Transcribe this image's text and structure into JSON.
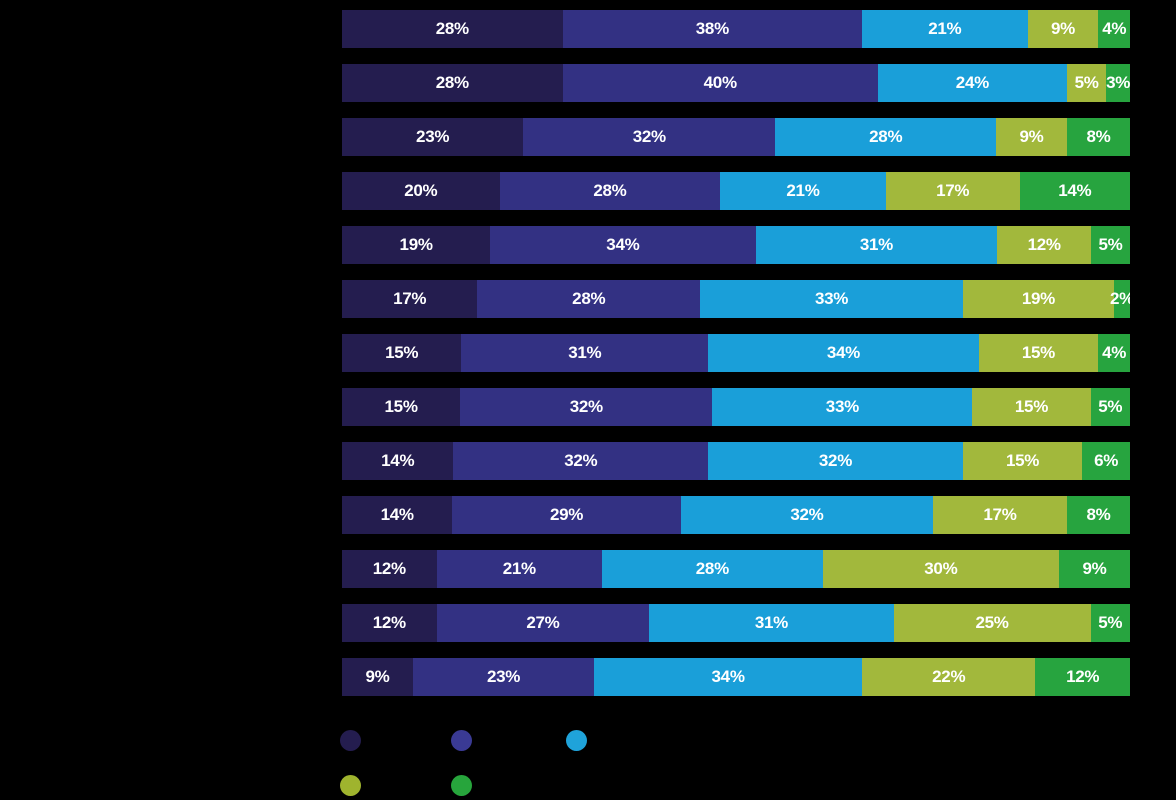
{
  "background_color": "#000000",
  "bar_label_color": "#ffffff",
  "chart_data": {
    "type": "bar",
    "orientation": "horizontal",
    "stacked": true,
    "num_rows": 13,
    "value_unit": "percent",
    "label_format": "{value}%",
    "row_sums_note": "each row rendered normalized to full bar width",
    "series": [
      {
        "name": "segment-1-dark-navy",
        "color": "#241d4f",
        "values": [
          28,
          28,
          23,
          20,
          19,
          17,
          15,
          15,
          14,
          14,
          12,
          12,
          9
        ]
      },
      {
        "name": "segment-2-indigo",
        "color": "#333183",
        "values": [
          38,
          40,
          32,
          28,
          34,
          28,
          31,
          32,
          32,
          29,
          21,
          27,
          23
        ]
      },
      {
        "name": "segment-3-cyan",
        "color": "#1a9fd9",
        "values": [
          21,
          24,
          28,
          21,
          31,
          33,
          34,
          33,
          32,
          32,
          28,
          31,
          34
        ]
      },
      {
        "name": "segment-4-olive-green",
        "color": "#a2b83c",
        "values": [
          9,
          5,
          9,
          17,
          12,
          19,
          15,
          15,
          15,
          17,
          30,
          25,
          22
        ]
      },
      {
        "name": "segment-5-green",
        "color": "#27a43f",
        "values": [
          4,
          3,
          8,
          14,
          5,
          2,
          4,
          5,
          6,
          8,
          9,
          5,
          12
        ]
      }
    ],
    "legend": {
      "items": [
        {
          "name": "legend-dot-1",
          "color": "#241d4f"
        },
        {
          "name": "legend-dot-2",
          "color": "#3a3a94"
        },
        {
          "name": "legend-dot-3",
          "color": "#1fa3da"
        },
        {
          "name": "legend-dot-4",
          "color": "#9fb42e"
        },
        {
          "name": "legend-dot-5",
          "color": "#27a53c"
        }
      ]
    }
  }
}
